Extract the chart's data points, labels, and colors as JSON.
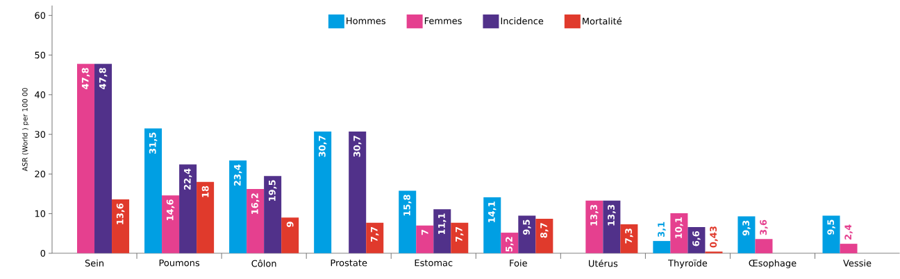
{
  "chart_data": {
    "type": "bar",
    "ylabel": "ASR (World ) per 100 00",
    "categories": [
      "Sein",
      "Poumons",
      "Côlon",
      "Prostate",
      "Estomac",
      "Foie",
      "Utérus",
      "Thyroïde",
      "Œsophage",
      "Vessie"
    ],
    "series": [
      {
        "name": "Hommes",
        "color": "#009fe3",
        "values": [
          null,
          31.5,
          23.4,
          30.7,
          15.8,
          14.1,
          null,
          3.1,
          9.3,
          9.5
        ],
        "value_labels": [
          null,
          "31,5",
          "23,4",
          "30,7",
          "15,8",
          "14,1",
          null,
          "3,1",
          "9,3",
          "9,5"
        ]
      },
      {
        "name": "Femmes",
        "color": "#e5408f",
        "values": [
          47.8,
          14.6,
          16.2,
          null,
          7,
          5.2,
          13.3,
          10.1,
          3.6,
          2.4
        ],
        "value_labels": [
          "47,8",
          "14,6",
          "16,2",
          null,
          "7",
          "5,2",
          "13,3",
          "10,1",
          "3,6",
          "2,4"
        ]
      },
      {
        "name": "Incidence",
        "color": "#51318a",
        "values": [
          47.8,
          22.4,
          19.5,
          30.7,
          11.1,
          9.5,
          13.3,
          6.6,
          null,
          null
        ],
        "value_labels": [
          "47,8",
          "22,4",
          "19,5",
          "30,7",
          "11,1",
          "9,5",
          "13,3",
          "6,6",
          null,
          null
        ]
      },
      {
        "name": "Mortalité",
        "color": "#e03a2c",
        "values": [
          13.6,
          18,
          9,
          7.7,
          7.7,
          8.7,
          7.3,
          0.43,
          null,
          null
        ],
        "value_labels": [
          "13,6",
          "18",
          "9",
          "7,7",
          "7,7",
          "8,7",
          "7,3",
          "0,43",
          null,
          null
        ]
      }
    ],
    "ylim": [
      0,
      62.5
    ],
    "yticks": [
      0,
      10,
      20,
      30,
      40,
      50,
      60
    ],
    "legend": "top"
  }
}
